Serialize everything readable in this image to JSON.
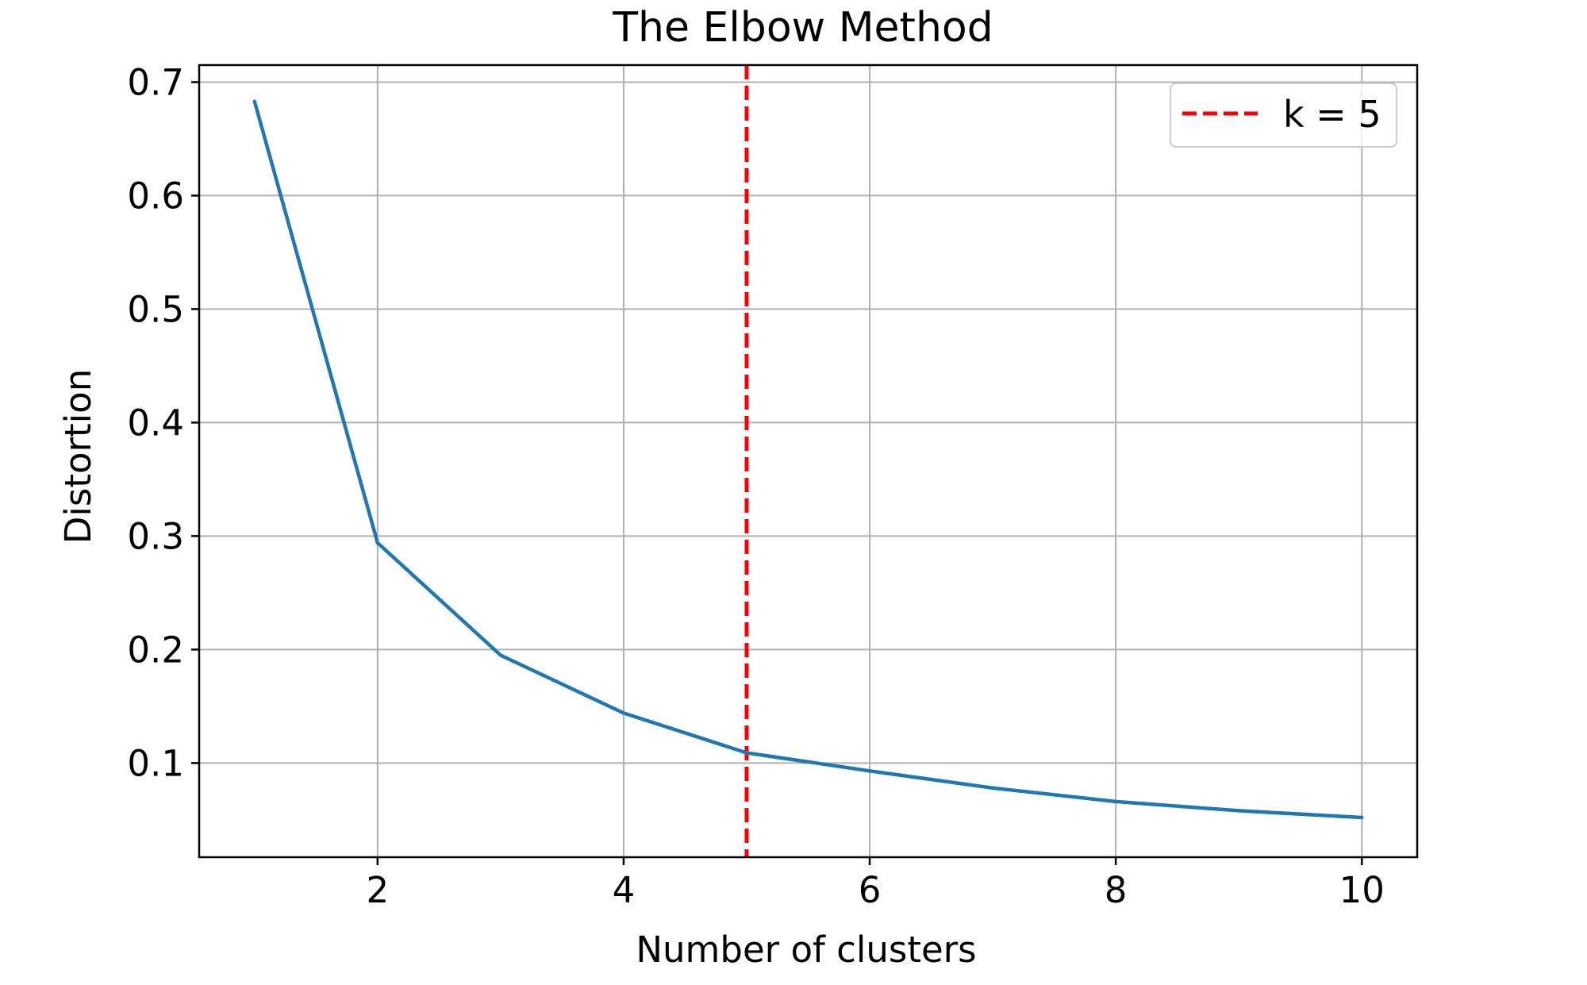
{
  "chart_data": {
    "type": "line",
    "title": "The Elbow Method",
    "xlabel": "Number of clusters",
    "ylabel": "Distortion",
    "xlim": [
      0.55,
      10.45
    ],
    "ylim": [
      0.017,
      0.715
    ],
    "x_ticks": [
      2,
      4,
      6,
      8,
      10
    ],
    "x_tick_labels": [
      "2",
      "4",
      "6",
      "8",
      "10"
    ],
    "y_ticks": [
      0.1,
      0.2,
      0.3,
      0.4,
      0.5,
      0.6,
      0.7
    ],
    "y_tick_labels": [
      "0.1",
      "0.2",
      "0.3",
      "0.4",
      "0.5",
      "0.6",
      "0.7"
    ],
    "grid": true,
    "series": [
      {
        "x": [
          1,
          2,
          3,
          4,
          5,
          6,
          7,
          8,
          9,
          10
        ],
        "values": [
          0.683,
          0.294,
          0.195,
          0.144,
          0.109,
          0.093,
          0.078,
          0.066,
          0.058,
          0.052
        ],
        "color": "#1f77b4"
      }
    ],
    "vline": {
      "x": 5,
      "color": "#ff0000",
      "style": "dashed",
      "label": "k = 5"
    },
    "legend": {
      "placement": "upper right",
      "entries": [
        "k = 5"
      ]
    }
  }
}
